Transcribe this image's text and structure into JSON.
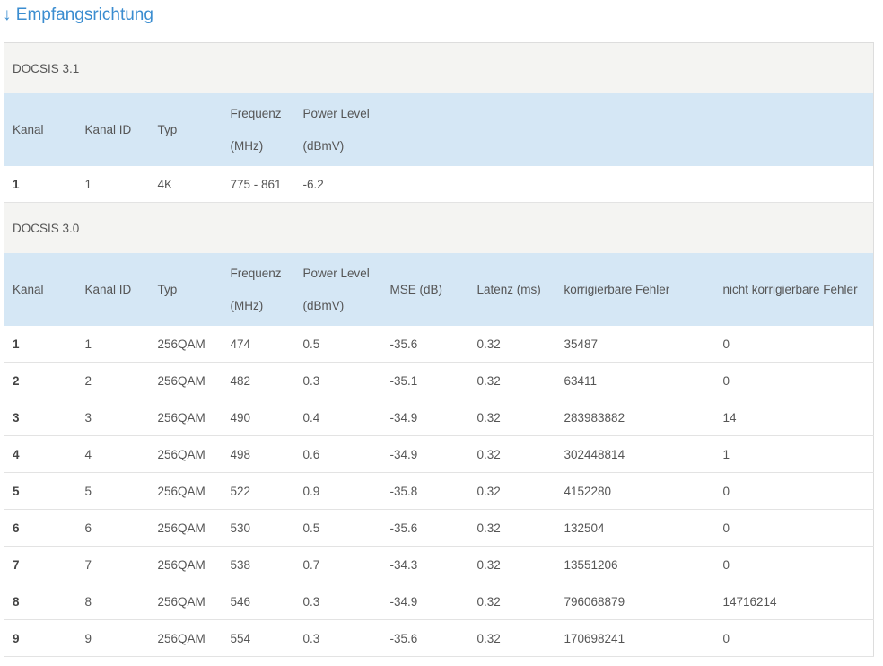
{
  "title": "↓ Empfangsrichtung",
  "sections": [
    {
      "name": "DOCSIS 3.1",
      "columns": [
        "Kanal",
        "Kanal ID",
        "Typ",
        [
          "Frequenz",
          "(MHz)"
        ],
        [
          "Power Level",
          "(dBmV)"
        ]
      ],
      "rows": [
        [
          "1",
          "1",
          "4K",
          "775 - 861",
          "-6.2"
        ]
      ]
    },
    {
      "name": "DOCSIS 3.0",
      "columns": [
        "Kanal",
        "Kanal ID",
        "Typ",
        [
          "Frequenz",
          "(MHz)"
        ],
        [
          "Power Level",
          "(dBmV)"
        ],
        "MSE (dB)",
        "Latenz (ms)",
        "korrigierbare Fehler",
        "nicht korrigierbare Fehler"
      ],
      "rows": [
        [
          "1",
          "1",
          "256QAM",
          "474",
          "0.5",
          "-35.6",
          "0.32",
          "35487",
          "0"
        ],
        [
          "2",
          "2",
          "256QAM",
          "482",
          "0.3",
          "-35.1",
          "0.32",
          "63411",
          "0"
        ],
        [
          "3",
          "3",
          "256QAM",
          "490",
          "0.4",
          "-34.9",
          "0.32",
          "283983882",
          "14"
        ],
        [
          "4",
          "4",
          "256QAM",
          "498",
          "0.6",
          "-34.9",
          "0.32",
          "302448814",
          "1"
        ],
        [
          "5",
          "5",
          "256QAM",
          "522",
          "0.9",
          "-35.8",
          "0.32",
          "4152280",
          "0"
        ],
        [
          "6",
          "6",
          "256QAM",
          "530",
          "0.5",
          "-35.6",
          "0.32",
          "132504",
          "0"
        ],
        [
          "7",
          "7",
          "256QAM",
          "538",
          "0.7",
          "-34.3",
          "0.32",
          "13551206",
          "0"
        ],
        [
          "8",
          "8",
          "256QAM",
          "546",
          "0.3",
          "-34.9",
          "0.32",
          "796068879",
          "14716214"
        ],
        [
          "9",
          "9",
          "256QAM",
          "554",
          "0.3",
          "-35.6",
          "0.32",
          "170698241",
          "0"
        ]
      ]
    }
  ]
}
